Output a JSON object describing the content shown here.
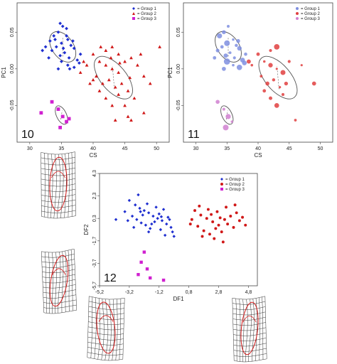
{
  "chart_data": [
    {
      "panel_label": "10",
      "type": "scatter",
      "xlabel": "CS",
      "ylabel": "PC1",
      "xticks": [
        "30",
        "35",
        "40",
        "45",
        "50"
      ],
      "yticks": [
        "0.05",
        "0.00",
        "-0.05"
      ],
      "xlim": [
        28,
        52
      ],
      "ylim": [
        -0.1,
        0.09
      ],
      "legend": {
        "position": "top-right",
        "entries": [
          "Group 1",
          "Group 2",
          "Group 3"
        ]
      },
      "colors": {
        "group1": "#1f2fd0",
        "group2": "#d01818",
        "group3": "#d020d0"
      },
      "series": [
        {
          "name": "Group 1",
          "marker": "diamond",
          "color": "#1f2fd0",
          "points": [
            [
              34.5,
              0.05
            ],
            [
              35.2,
              0.058
            ],
            [
              33.8,
              0.045
            ],
            [
              36,
              0.04
            ],
            [
              35,
              0.035
            ],
            [
              34.2,
              0.03
            ],
            [
              36.5,
              0.032
            ],
            [
              37,
              0.028
            ],
            [
              33.5,
              0.025
            ],
            [
              35.5,
              0.022
            ],
            [
              34.8,
              0.018
            ],
            [
              36.2,
              0.015
            ],
            [
              37.5,
              0.012
            ],
            [
              33,
              0.015
            ],
            [
              35,
              0.01
            ],
            [
              36,
              0.005
            ],
            [
              34.5,
              0.0
            ],
            [
              37,
              0.002
            ],
            [
              32.5,
              0.03
            ],
            [
              38,
              0.02
            ],
            [
              35.8,
              0.045
            ],
            [
              34,
              0.04
            ],
            [
              36.8,
              0.038
            ],
            [
              33.2,
              0.038
            ],
            [
              35.3,
              0.028
            ],
            [
              37.8,
              0.008
            ],
            [
              34.8,
              0.062
            ],
            [
              35.8,
              0.055
            ],
            [
              32,
              0.025
            ],
            [
              36.3,
              0.0
            ]
          ]
        },
        {
          "name": "Group 2",
          "marker": "triangle",
          "color": "#d01818",
          "points": [
            [
              40,
              0.02
            ],
            [
              41,
              0.01
            ],
            [
              42,
              0.005
            ],
            [
              43,
              0.0
            ],
            [
              44,
              -0.005
            ],
            [
              45,
              0.01
            ],
            [
              46,
              0.015
            ],
            [
              40.5,
              -0.01
            ],
            [
              41.5,
              -0.02
            ],
            [
              42.5,
              -0.015
            ],
            [
              43.5,
              -0.025
            ],
            [
              44.5,
              -0.02
            ],
            [
              45.5,
              -0.03
            ],
            [
              39,
              0.005
            ],
            [
              38.5,
              0.01
            ],
            [
              42,
              0.025
            ],
            [
              43,
              0.03
            ],
            [
              44,
              0.02
            ],
            [
              47,
              0.005
            ],
            [
              48,
              -0.01
            ],
            [
              46.5,
              -0.04
            ],
            [
              42,
              -0.04
            ],
            [
              43,
              -0.05
            ],
            [
              44,
              -0.035
            ],
            [
              45,
              -0.05
            ],
            [
              41,
              -0.03
            ],
            [
              40,
              -0.015
            ],
            [
              47.5,
              0.02
            ],
            [
              49,
              -0.02
            ],
            [
              48,
              -0.06
            ],
            [
              45.5,
              -0.065
            ],
            [
              43.5,
              -0.07
            ],
            [
              38,
              -0.005
            ],
            [
              39.5,
              -0.02
            ],
            [
              41.2,
              0.03
            ],
            [
              42.8,
              0.015
            ],
            [
              44.2,
              0.008
            ],
            [
              45.8,
              -0.012
            ],
            [
              50.5,
              0.03
            ],
            [
              46,
              -0.07
            ]
          ]
        },
        {
          "name": "Group 3",
          "marker": "square",
          "color": "#d020d0",
          "points": [
            [
              33.5,
              -0.045
            ],
            [
              31.8,
              -0.06
            ],
            [
              34.5,
              -0.055
            ],
            [
              35.2,
              -0.065
            ],
            [
              35.8,
              -0.072
            ],
            [
              36.2,
              -0.068
            ],
            [
              34.8,
              -0.08
            ]
          ]
        }
      ]
    },
    {
      "panel_label": "11",
      "type": "scatter",
      "xlabel": "CS",
      "ylabel": "PC1",
      "xticks": [
        "30",
        "35",
        "40",
        "45",
        "50"
      ],
      "yticks": [
        "0.05",
        "0.00",
        "-0.05"
      ],
      "xlim": [
        28,
        52
      ],
      "ylim": [
        -0.1,
        0.09
      ],
      "legend": {
        "position": "top-right",
        "entries": [
          "Group 1",
          "Group 2",
          "Group 3"
        ]
      },
      "colors": {
        "group1": "#7f8fe0",
        "group2": "#e04040",
        "group3": "#d080d0"
      },
      "series": [
        {
          "name": "Group 1",
          "marker": "circle",
          "color": "#7f8fe0",
          "points": [
            [
              34.5,
              0.05
            ],
            [
              35.2,
              0.058
            ],
            [
              33.8,
              0.045
            ],
            [
              36,
              0.04
            ],
            [
              35,
              0.035
            ],
            [
              34.2,
              0.03
            ],
            [
              36.5,
              0.032
            ],
            [
              37,
              0.028
            ],
            [
              33.5,
              0.025
            ],
            [
              35.5,
              0.022
            ],
            [
              34.8,
              0.018
            ],
            [
              36.2,
              0.015
            ],
            [
              37.5,
              0.012
            ],
            [
              33,
              0.015
            ],
            [
              35,
              0.01
            ],
            [
              36,
              0.005
            ],
            [
              34.5,
              0.0
            ],
            [
              37,
              0.002
            ],
            [
              38,
              0.02
            ],
            [
              36.8,
              0.038
            ],
            [
              37.8,
              0.008
            ]
          ]
        },
        {
          "name": "Group 2",
          "marker": "circle",
          "color": "#e04040",
          "points": [
            [
              40,
              0.02
            ],
            [
              41,
              0.01
            ],
            [
              42,
              0.005
            ],
            [
              43,
              0.0
            ],
            [
              44,
              -0.005
            ],
            [
              45,
              0.01
            ],
            [
              40.5,
              -0.01
            ],
            [
              41.5,
              -0.02
            ],
            [
              42.5,
              -0.015
            ],
            [
              43.5,
              -0.025
            ],
            [
              44.5,
              -0.02
            ],
            [
              39,
              0.005
            ],
            [
              38.5,
              0.01
            ],
            [
              42,
              0.025
            ],
            [
              43,
              0.03
            ],
            [
              47,
              0.005
            ],
            [
              42,
              -0.04
            ],
            [
              43,
              -0.05
            ],
            [
              44,
              -0.035
            ],
            [
              41,
              -0.03
            ],
            [
              49,
              -0.02
            ],
            [
              46,
              -0.07
            ]
          ]
        },
        {
          "name": "Group 3",
          "marker": "circle",
          "color": "#d080d0",
          "points": [
            [
              33.5,
              -0.045
            ],
            [
              34.5,
              -0.055
            ],
            [
              35.2,
              -0.065
            ],
            [
              35.8,
              -0.072
            ],
            [
              34.8,
              -0.08
            ]
          ]
        }
      ]
    },
    {
      "panel_label": "12",
      "type": "scatter",
      "xlabel": "DF1",
      "ylabel": "DF2",
      "xticks": [
        "-5,2",
        "-3,2",
        "-1,2",
        "0,8",
        "2,8",
        "4,8"
      ],
      "yticks": [
        "4,3",
        "2,3",
        "0,3",
        "-1,7",
        "-3,7",
        "-5,7"
      ],
      "xlim": [
        -5.2,
        5.4
      ],
      "ylim": [
        -5.7,
        4.3
      ],
      "legend": {
        "position": "top-right",
        "entries": [
          "Group 1",
          "Group 2",
          "Group 3"
        ]
      },
      "colors": {
        "group1": "#1f2fd0",
        "group2": "#d01818",
        "group3": "#d020d0"
      },
      "series": [
        {
          "name": "Group 1",
          "marker": "diamond",
          "color": "#1f2fd0",
          "points": [
            [
              -3.2,
              1.9
            ],
            [
              -2.8,
              1.5
            ],
            [
              -2.5,
              1.2
            ],
            [
              -2.2,
              1.0
            ],
            [
              -1.9,
              0.8
            ],
            [
              -1.6,
              0.5
            ],
            [
              -1.3,
              0.3
            ],
            [
              -1.0,
              0.1
            ],
            [
              -0.7,
              -0.2
            ],
            [
              -0.4,
              -0.5
            ],
            [
              -3.0,
              0.5
            ],
            [
              -2.7,
              0.2
            ],
            [
              -2.4,
              -0.1
            ],
            [
              -2.1,
              -0.3
            ],
            [
              -1.8,
              -0.6
            ],
            [
              -1.5,
              0.0
            ],
            [
              -1.2,
              0.7
            ],
            [
              -0.9,
              1.1
            ],
            [
              -0.6,
              0.4
            ],
            [
              -0.3,
              -0.9
            ],
            [
              -3.5,
              0.9
            ],
            [
              -2.0,
              1.6
            ],
            [
              -1.4,
              1.3
            ],
            [
              -0.8,
              -1.2
            ],
            [
              -2.9,
              -0.5
            ],
            [
              -2.3,
              0.6
            ],
            [
              -1.7,
              -0.2
            ],
            [
              -1.1,
              -0.7
            ],
            [
              -0.5,
              0.2
            ],
            [
              -3.3,
              0.1
            ],
            [
              -4.1,
              0.2
            ],
            [
              -2.6,
              2.4
            ],
            [
              -1.9,
              -0.9
            ],
            [
              -0.2,
              -1.3
            ],
            [
              -2.45,
              0.9
            ],
            [
              -1.05,
              0.45
            ]
          ]
        },
        {
          "name": "Group 2",
          "marker": "circle",
          "color": "#d01818",
          "points": [
            [
              1.2,
              1.0
            ],
            [
              1.6,
              0.6
            ],
            [
              2.0,
              0.3
            ],
            [
              2.4,
              0.0
            ],
            [
              2.8,
              -0.3
            ],
            [
              3.2,
              0.2
            ],
            [
              3.6,
              0.5
            ],
            [
              4.0,
              0.8
            ],
            [
              1.4,
              -0.4
            ],
            [
              1.8,
              -0.8
            ],
            [
              2.2,
              -1.1
            ],
            [
              2.6,
              -0.6
            ],
            [
              3.0,
              -0.9
            ],
            [
              3.4,
              -0.2
            ],
            [
              3.8,
              -0.5
            ],
            [
              4.2,
              0.1
            ],
            [
              1.0,
              0.2
            ],
            [
              1.5,
              1.4
            ],
            [
              2.1,
              1.1
            ],
            [
              2.7,
              0.9
            ],
            [
              3.3,
              1.3
            ],
            [
              3.9,
              1.5
            ],
            [
              4.4,
              0.4
            ],
            [
              2.5,
              -1.5
            ],
            [
              3.1,
              -1.8
            ],
            [
              1.7,
              -1.3
            ],
            [
              0.9,
              -0.2
            ],
            [
              4.6,
              -0.3
            ],
            [
              2.3,
              0.65
            ],
            [
              2.9,
              0.35
            ]
          ]
        },
        {
          "name": "Group 3",
          "marker": "square",
          "color": "#d020d0",
          "points": [
            [
              -2.2,
              -2.7
            ],
            [
              -2.4,
              -3.6
            ],
            [
              -2.0,
              -4.2
            ],
            [
              -2.6,
              -4.7
            ],
            [
              -1.8,
              -5.0
            ],
            [
              -0.9,
              -5.2
            ]
          ]
        }
      ]
    }
  ]
}
